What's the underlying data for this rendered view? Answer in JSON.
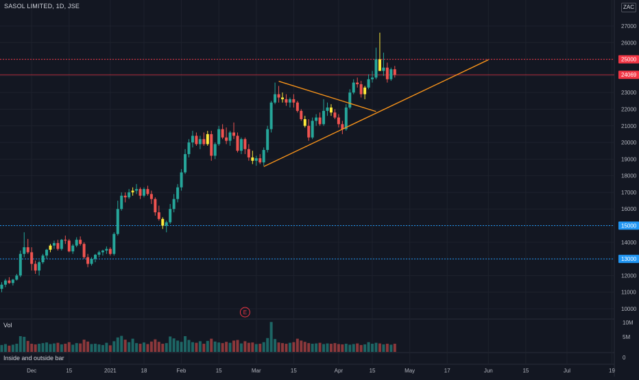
{
  "header": {
    "symbol_line": "SASOL LIMITED, 1D, JSE",
    "currency_badge": "ZAC"
  },
  "volume_panel": {
    "label": "Vol",
    "axis_ticks": [
      "10M",
      "5M"
    ]
  },
  "indicator_panel": {
    "label": "Inside and outside bar",
    "axis_value": "0"
  },
  "earnings_marker": "E",
  "colors": {
    "background": "#131722",
    "up": "#26a69a",
    "down": "#ef5350",
    "inside_bar": "#ffeb3b",
    "trendline": "#f7931a",
    "resistance": "#f23645",
    "support": "#2196f3",
    "price_label": "#f23645"
  },
  "chart_data": {
    "type": "candlestick",
    "symbol": "SASOL LIMITED",
    "interval": "1D",
    "exchange": "JSE",
    "currency": "ZAC",
    "y_axis": {
      "ticks": [
        10000,
        11000,
        12000,
        13000,
        14000,
        15000,
        16000,
        17000,
        18000,
        19000,
        20000,
        21000,
        22000,
        23000,
        24000,
        25000,
        26000,
        27000
      ],
      "ylim": [
        9000,
        27900
      ]
    },
    "x_axis": {
      "tick_labels": [
        {
          "label": "Dec",
          "bar": 8
        },
        {
          "label": "15",
          "bar": 18
        },
        {
          "label": "2021",
          "bar": 29
        },
        {
          "label": "18",
          "bar": 38
        },
        {
          "label": "Feb",
          "bar": 48
        },
        {
          "label": "15",
          "bar": 58
        },
        {
          "label": "Mar",
          "bar": 68
        },
        {
          "label": "15",
          "bar": 78
        },
        {
          "label": "Apr",
          "bar": 90
        },
        {
          "label": "15",
          "bar": 99
        },
        {
          "label": "May",
          "bar": 109
        },
        {
          "label": "17",
          "bar": 119
        },
        {
          "label": "Jun",
          "bar": 130
        },
        {
          "label": "15",
          "bar": 140
        },
        {
          "label": "Jul",
          "bar": 151
        },
        {
          "label": "19",
          "bar": 163
        }
      ],
      "bar_range": [
        0,
        168
      ]
    },
    "horizontal_lines": [
      {
        "price": 25000,
        "label": "25000",
        "color": "#f23645",
        "style": "dotted"
      },
      {
        "price": 24069,
        "label": "24069",
        "color": "#f23645",
        "style": "solid",
        "last_price": true
      },
      {
        "price": 15000,
        "label": "15000",
        "color": "#2196f3",
        "style": "dotted"
      },
      {
        "price": 13000,
        "label": "13000",
        "color": "#2196f3",
        "style": "dotted"
      }
    ],
    "trendlines": [
      {
        "from": {
          "bar": 70,
          "price": 18550
        },
        "to": {
          "bar": 130,
          "price": 24970
        }
      },
      {
        "from": {
          "bar": 74,
          "price": 23680
        },
        "to": {
          "bar": 100,
          "price": 21860
        }
      }
    ],
    "candles": [
      [
        11200,
        11600,
        11000,
        11450
      ],
      [
        11450,
        11800,
        11300,
        11700
      ],
      [
        11700,
        11900,
        11500,
        11550
      ],
      [
        11550,
        11800,
        11400,
        11750
      ],
      [
        11750,
        12100,
        11700,
        12000
      ],
      [
        12000,
        13500,
        11900,
        13300
      ],
      [
        13300,
        14600,
        13100,
        13700
      ],
      [
        13700,
        14200,
        13300,
        13400
      ],
      [
        13400,
        13700,
        12300,
        12700
      ],
      [
        12700,
        12900,
        12100,
        12300
      ],
      [
        12300,
        12900,
        12000,
        12800
      ],
      [
        12800,
        13300,
        12700,
        13200
      ],
      [
        13200,
        13600,
        13000,
        13550
      ],
      [
        13550,
        13900,
        13400,
        13800
      ],
      [
        13800,
        14100,
        13600,
        13950
      ],
      [
        13950,
        14150,
        13500,
        13600
      ],
      [
        13600,
        14200,
        13500,
        14150
      ],
      [
        14150,
        14400,
        13900,
        14100
      ],
      [
        14100,
        14200,
        13400,
        13450
      ],
      [
        13450,
        13900,
        13300,
        13800
      ],
      [
        13800,
        14300,
        13700,
        14150
      ],
      [
        14150,
        14350,
        13800,
        13900
      ],
      [
        13900,
        14000,
        13000,
        13100
      ],
      [
        13100,
        13300,
        12500,
        12700
      ],
      [
        12700,
        13100,
        12600,
        13000
      ],
      [
        13000,
        13300,
        12800,
        13250
      ],
      [
        13250,
        13500,
        13100,
        13400
      ],
      [
        13400,
        13550,
        13200,
        13500
      ],
      [
        13500,
        13750,
        13300,
        13600
      ],
      [
        13600,
        13700,
        13200,
        13300
      ],
      [
        13300,
        14600,
        13200,
        14500
      ],
      [
        14500,
        16500,
        14400,
        16000
      ],
      [
        16000,
        17000,
        15900,
        16800
      ],
      [
        16800,
        17000,
        16400,
        16700
      ],
      [
        16700,
        17200,
        16600,
        17000
      ],
      [
        17000,
        17300,
        16800,
        17100
      ],
      [
        17100,
        17500,
        16900,
        17200
      ],
      [
        17200,
        17300,
        16600,
        16800
      ],
      [
        16800,
        17300,
        16700,
        17200
      ],
      [
        17200,
        17400,
        16800,
        16900
      ],
      [
        16900,
        17100,
        16300,
        16600
      ],
      [
        16600,
        16700,
        15600,
        15800
      ],
      [
        15800,
        16200,
        15300,
        15400
      ],
      [
        15400,
        15500,
        14800,
        15000
      ],
      [
        15000,
        15300,
        14600,
        15200
      ],
      [
        15200,
        16300,
        15100,
        16000
      ],
      [
        16000,
        16900,
        15800,
        16600
      ],
      [
        16600,
        17500,
        16400,
        17300
      ],
      [
        17300,
        18400,
        17100,
        18200
      ],
      [
        18200,
        19600,
        18100,
        19300
      ],
      [
        19300,
        20200,
        19100,
        20000
      ],
      [
        20000,
        20700,
        19700,
        20400
      ],
      [
        20400,
        20600,
        19800,
        19900
      ],
      [
        19900,
        20400,
        19600,
        20200
      ],
      [
        20200,
        20600,
        19800,
        19900
      ],
      [
        19900,
        20700,
        19800,
        20500
      ],
      [
        20500,
        20700,
        18900,
        19200
      ],
      [
        19200,
        20000,
        19000,
        19900
      ],
      [
        19900,
        21000,
        19800,
        20800
      ],
      [
        20800,
        21100,
        20200,
        20300
      ],
      [
        20300,
        20900,
        19900,
        20100
      ],
      [
        20100,
        20700,
        19800,
        20600
      ],
      [
        20600,
        21200,
        20200,
        20400
      ],
      [
        20400,
        20600,
        19400,
        19500
      ],
      [
        19500,
        20300,
        19300,
        20200
      ],
      [
        20200,
        20300,
        19300,
        19600
      ],
      [
        19600,
        19900,
        18900,
        19100
      ],
      [
        19100,
        19500,
        18700,
        18900
      ],
      [
        18900,
        19200,
        18600,
        19050
      ],
      [
        19050,
        19300,
        18700,
        18800
      ],
      [
        18800,
        19700,
        18600,
        19550
      ],
      [
        19550,
        21000,
        19400,
        20800
      ],
      [
        20800,
        22500,
        20600,
        22400
      ],
      [
        22400,
        23600,
        22300,
        22900
      ],
      [
        22900,
        23400,
        22400,
        22700
      ],
      [
        22700,
        23000,
        22400,
        22600
      ],
      [
        22600,
        22900,
        22200,
        22400
      ],
      [
        22400,
        22700,
        22100,
        22600
      ],
      [
        22600,
        22900,
        22100,
        22400
      ],
      [
        22400,
        22500,
        21800,
        21900
      ],
      [
        21900,
        22000,
        21300,
        21400
      ],
      [
        21400,
        21600,
        20900,
        21000
      ],
      [
        21000,
        21400,
        20100,
        20300
      ],
      [
        20300,
        21500,
        20200,
        21300
      ],
      [
        21300,
        21700,
        21000,
        21500
      ],
      [
        21500,
        21800,
        21000,
        21100
      ],
      [
        21100,
        22600,
        21000,
        21900
      ],
      [
        21900,
        22400,
        21600,
        22100
      ],
      [
        22100,
        22300,
        21600,
        21800
      ],
      [
        21800,
        22000,
        21400,
        21500
      ],
      [
        21500,
        21700,
        20900,
        21100
      ],
      [
        21100,
        21300,
        20500,
        20800
      ],
      [
        20800,
        22300,
        20700,
        22100
      ],
      [
        22100,
        23200,
        22000,
        23000
      ],
      [
        23000,
        23800,
        22900,
        23600
      ],
      [
        23600,
        23900,
        23300,
        23500
      ],
      [
        23500,
        23700,
        22700,
        22900
      ],
      [
        22900,
        23400,
        22600,
        23300
      ],
      [
        23300,
        24100,
        23200,
        23800
      ],
      [
        23800,
        24300,
        23600,
        23900
      ],
      [
        23900,
        25700,
        23800,
        25000
      ],
      [
        25000,
        26600,
        24300,
        24300
      ],
      [
        24300,
        25400,
        24000,
        24500
      ],
      [
        24500,
        24800,
        23600,
        23800
      ],
      [
        23800,
        24500,
        23700,
        24400
      ],
      [
        24400,
        24600,
        23900,
        24069
      ]
    ],
    "inside_bar_indices": [
      13,
      35,
      43,
      55,
      67,
      75,
      81,
      88,
      97,
      101
    ],
    "volume": [
      2.2,
      2.5,
      2.0,
      2.3,
      2.6,
      5.0,
      4.8,
      3.5,
      2.6,
      2.4,
      2.6,
      2.8,
      3.0,
      2.5,
      2.7,
      2.9,
      2.4,
      2.6,
      3.1,
      2.3,
      2.8,
      2.7,
      3.9,
      3.3,
      2.5,
      2.6,
      2.4,
      2.2,
      2.9,
      2.1,
      3.4,
      4.6,
      5.1,
      3.9,
      3.1,
      4.2,
      2.8,
      2.6,
      3.0,
      2.5,
      3.3,
      4.0,
      3.2,
      2.6,
      2.8,
      4.9,
      4.3,
      3.6,
      3.2,
      5.0,
      3.8,
      3.1,
      2.9,
      3.4,
      2.6,
      3.5,
      4.2,
      3.3,
      3.0,
      2.8,
      3.2,
      2.9,
      3.6,
      3.8,
      2.7,
      3.4,
      2.9,
      3.0,
      2.5,
      2.6,
      3.1,
      4.4,
      9.5,
      4.1,
      3.0,
      2.8,
      2.6,
      2.9,
      3.1,
      4.2,
      3.6,
      3.2,
      2.8,
      2.6,
      2.7,
      2.9,
      2.5,
      2.7,
      2.6,
      2.8,
      2.5,
      2.4,
      2.6,
      2.3,
      2.5,
      2.7,
      2.2,
      2.4,
      3.1,
      2.6,
      2.9,
      2.7,
      2.4,
      2.6,
      2.3,
      2.6
    ]
  }
}
